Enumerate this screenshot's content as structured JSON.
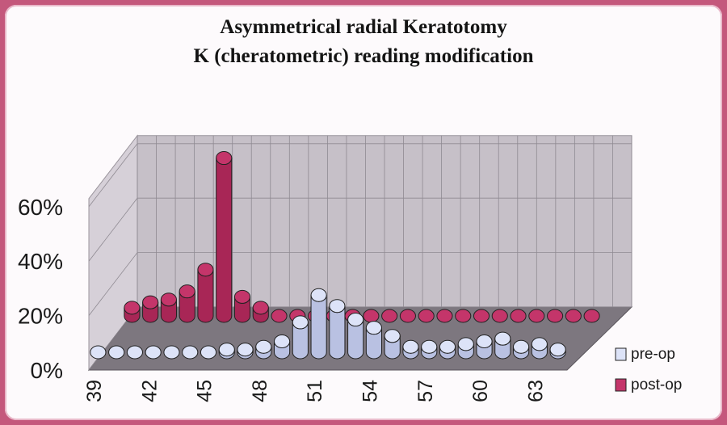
{
  "chart_data": {
    "type": "bar",
    "title": "Asymmetrical radial Keratotomy",
    "subtitle": "K (cheratometric) reading modification",
    "xlabel": "",
    "ylabel": "",
    "ylim": [
      0,
      0.6
    ],
    "y_ticks": [
      "0%",
      "20%",
      "40%",
      "60%"
    ],
    "y_tick_values": [
      0,
      0.2,
      0.4,
      0.6
    ],
    "categories": [
      39,
      40,
      41,
      42,
      43,
      44,
      45,
      46,
      47,
      48,
      49,
      50,
      51,
      52,
      53,
      54,
      55,
      56,
      57,
      58,
      59,
      60,
      61,
      62,
      63,
      64
    ],
    "x_tick_labels": [
      "39",
      "42",
      "45",
      "48",
      "51",
      "54",
      "57",
      "60",
      "63"
    ],
    "series": [
      {
        "name": "pre-op",
        "color": "#dde3f8",
        "values": [
          0,
          0,
          0,
          0,
          0,
          0,
          0,
          0.01,
          0.01,
          0.02,
          0.04,
          0.11,
          0.21,
          0.17,
          0.12,
          0.09,
          0.06,
          0.02,
          0.02,
          0.02,
          0.03,
          0.04,
          0.05,
          0.02,
          0.03,
          0.01
        ]
      },
      {
        "name": "post-op",
        "color": "#c4356a",
        "values": [
          0.03,
          0.05,
          0.06,
          0.09,
          0.17,
          0.58,
          0.07,
          0.03,
          0,
          0,
          0,
          0,
          0,
          0,
          0,
          0,
          0,
          0,
          0,
          0,
          0,
          0,
          0,
          0,
          0,
          0
        ]
      }
    ],
    "legend_position": "bottom-right",
    "grid": true,
    "chart_style": "3d-cylinders"
  }
}
